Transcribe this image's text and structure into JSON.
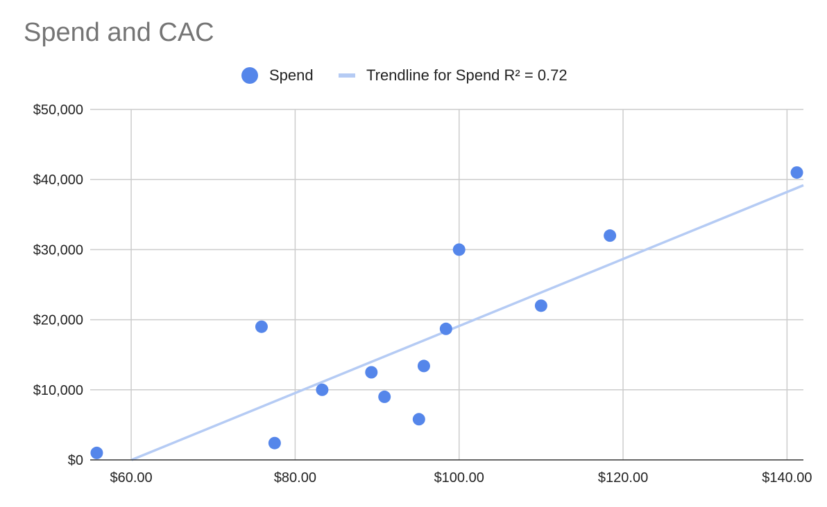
{
  "chart_data": {
    "type": "scatter",
    "title": "Spend and CAC",
    "xlabel": "",
    "ylabel": "",
    "xlim": [
      55,
      142
    ],
    "ylim": [
      0,
      50000
    ],
    "x_ticks": [
      60,
      80,
      100,
      120,
      140
    ],
    "x_tick_labels": [
      "$60.00",
      "$80.00",
      "$100.00",
      "$120.00",
      "$140.00"
    ],
    "y_ticks": [
      0,
      10000,
      20000,
      30000,
      40000,
      50000
    ],
    "y_tick_labels": [
      "$0",
      "$10,000",
      "$20,000",
      "$30,000",
      "$40,000",
      "$50,000"
    ],
    "grid": true,
    "legend_position": "top",
    "series": [
      {
        "name": "Spend",
        "color": "#5586ea",
        "points": [
          {
            "x": 55.8,
            "y": 1000
          },
          {
            "x": 75.9,
            "y": 19000
          },
          {
            "x": 77.5,
            "y": 2400
          },
          {
            "x": 83.3,
            "y": 10000
          },
          {
            "x": 89.3,
            "y": 12500
          },
          {
            "x": 90.9,
            "y": 9000
          },
          {
            "x": 95.1,
            "y": 5800
          },
          {
            "x": 95.7,
            "y": 13400
          },
          {
            "x": 98.4,
            "y": 18700
          },
          {
            "x": 100.0,
            "y": 30000
          },
          {
            "x": 110.0,
            "y": 22000
          },
          {
            "x": 118.4,
            "y": 32000
          },
          {
            "x": 141.2,
            "y": 41000
          }
        ]
      }
    ],
    "trendline": {
      "name": "Trendline for Spend R² = 0.72",
      "color": "#b5cbf4",
      "type": "linear",
      "slope": 478,
      "intercept": -28700
    }
  }
}
